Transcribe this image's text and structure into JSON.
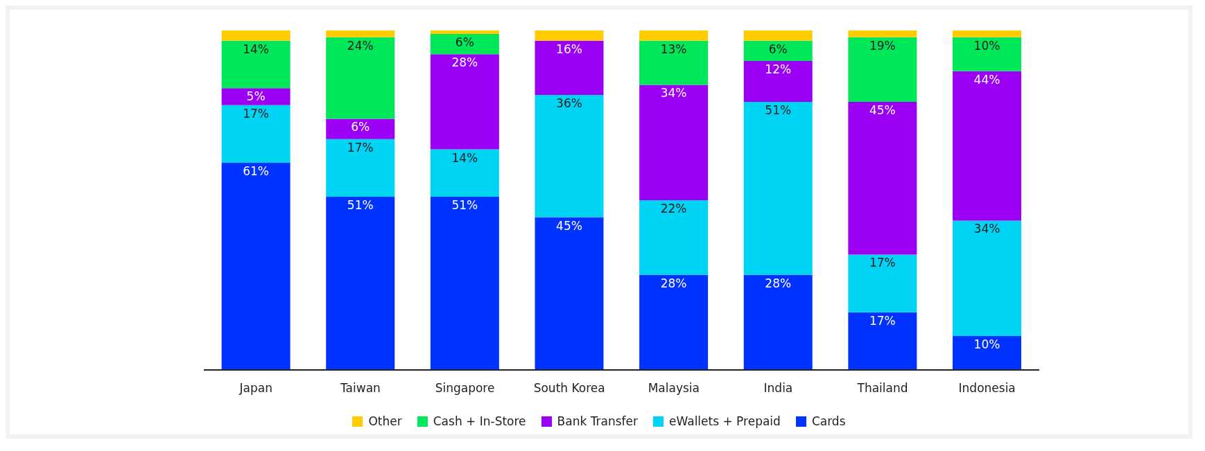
{
  "chart_data": {
    "type": "bar",
    "stacked": true,
    "categories": [
      "Japan",
      "Taiwan",
      "Singapore",
      "South Korea",
      "Malaysia",
      "India",
      "Thailand",
      "Indonesia"
    ],
    "series": [
      {
        "name": "Cards",
        "color": "#0033ff",
        "values": [
          61,
          51,
          51,
          45,
          28,
          28,
          17,
          10
        ],
        "value_labels": [
          "61%",
          "51%",
          "51%",
          "45%",
          "28%",
          "28%",
          "17%",
          "10%"
        ]
      },
      {
        "name": "eWallets + Prepaid",
        "color": "#00d4f5",
        "values": [
          17,
          17,
          14,
          36,
          22,
          51,
          17,
          34
        ],
        "value_labels": [
          "17%",
          "17%",
          "14%",
          "36%",
          "22%",
          "51%",
          "17%",
          "34%"
        ]
      },
      {
        "name": "Bank Transfer",
        "color": "#9b00f5",
        "values": [
          5,
          6,
          28,
          16,
          34,
          12,
          45,
          44
        ],
        "value_labels": [
          "5%",
          "6%",
          "28%",
          "16%",
          "34%",
          "12%",
          "45%",
          "44%"
        ]
      },
      {
        "name": "Cash + In-Store",
        "color": "#00e85a",
        "values": [
          14,
          24,
          6,
          0,
          13,
          6,
          19,
          10
        ],
        "value_labels": [
          "14%",
          "24%",
          "6%",
          null,
          "13%",
          "6%",
          "19%",
          "10%"
        ]
      },
      {
        "name": "Other",
        "color": "#ffcc00",
        "values": [
          3,
          2,
          1,
          3,
          3,
          3,
          2,
          2
        ],
        "value_labels": [
          null,
          null,
          null,
          null,
          null,
          null,
          null,
          null
        ]
      }
    ],
    "legend": "bottom",
    "grid": false,
    "tick_labels": "x"
  }
}
